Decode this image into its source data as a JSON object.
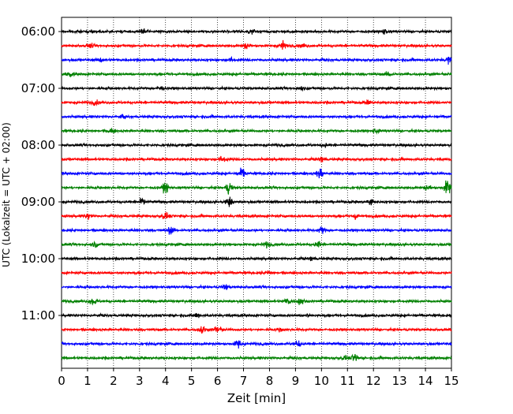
{
  "chart_data": {
    "type": "line",
    "title": "",
    "xlabel": "Zeit  [min]",
    "ylabel": "UTC (Lokalzeit = UTC + 02:00)",
    "xlim": [
      0,
      15
    ],
    "xticks": [
      0,
      1,
      2,
      3,
      4,
      5,
      6,
      7,
      8,
      9,
      10,
      11,
      12,
      13,
      14,
      15
    ],
    "grid": "vertical dotted lines at each minute",
    "time_ticks": [
      "06:00",
      "07:00",
      "08:00",
      "09:00",
      "10:00",
      "11:00"
    ],
    "trace_colors": [
      "#000000",
      "#ff0000",
      "#0000ff",
      "#008000"
    ],
    "traces": [
      {
        "start": "06:00",
        "color": "#000000",
        "events": [
          {
            "t": 3.15,
            "amp": 0.25
          },
          {
            "t": 7.3,
            "amp": 0.2
          },
          {
            "t": 12.4,
            "amp": 0.25
          }
        ]
      },
      {
        "start": "06:15",
        "color": "#ff0000",
        "events": [
          {
            "t": 1.1,
            "amp": 0.2
          },
          {
            "t": 7.1,
            "amp": 0.3
          },
          {
            "t": 8.5,
            "amp": 0.55
          },
          {
            "t": 9.3,
            "amp": 0.2
          }
        ]
      },
      {
        "start": "06:30",
        "color": "#0000ff",
        "events": [
          {
            "t": 1.5,
            "amp": 0.2
          },
          {
            "t": 6.5,
            "amp": 0.2
          },
          {
            "t": 14.9,
            "amp": 0.4
          }
        ]
      },
      {
        "start": "06:45",
        "color": "#008000",
        "events": [
          {
            "t": 0.3,
            "amp": 0.3
          },
          {
            "t": 12.6,
            "amp": 0.3
          }
        ]
      },
      {
        "start": "07:00",
        "color": "#000000",
        "events": [
          {
            "t": 3.8,
            "amp": 0.25
          },
          {
            "t": 9.2,
            "amp": 0.2
          }
        ]
      },
      {
        "start": "07:15",
        "color": "#ff0000",
        "events": [
          {
            "t": 1.3,
            "amp": 0.25
          },
          {
            "t": 11.8,
            "amp": 0.2
          }
        ]
      },
      {
        "start": "07:30",
        "color": "#0000ff",
        "events": [
          {
            "t": 2.4,
            "amp": 0.15
          }
        ]
      },
      {
        "start": "07:45",
        "color": "#008000",
        "events": [
          {
            "t": 1.9,
            "amp": 0.25
          },
          {
            "t": 12.1,
            "amp": 0.25
          }
        ]
      },
      {
        "start": "08:00",
        "color": "#000000",
        "events": [
          {
            "t": 10.1,
            "amp": 0.2
          }
        ]
      },
      {
        "start": "08:15",
        "color": "#ff0000",
        "events": [
          {
            "t": 6.2,
            "amp": 0.35
          },
          {
            "t": 10.0,
            "amp": 0.3
          }
        ]
      },
      {
        "start": "08:30",
        "color": "#0000ff",
        "events": [
          {
            "t": 6.95,
            "amp": 0.6
          },
          {
            "t": 9.95,
            "amp": 0.65
          }
        ]
      },
      {
        "start": "08:45",
        "color": "#008000",
        "events": [
          {
            "t": 4.0,
            "amp": 0.55
          },
          {
            "t": 6.45,
            "amp": 0.7
          },
          {
            "t": 14.1,
            "amp": 0.35
          },
          {
            "t": 14.85,
            "amp": 0.95
          }
        ]
      },
      {
        "start": "09:00",
        "color": "#000000",
        "events": [
          {
            "t": 3.1,
            "amp": 0.35
          },
          {
            "t": 6.45,
            "amp": 0.55
          },
          {
            "t": 11.9,
            "amp": 0.45
          }
        ]
      },
      {
        "start": "09:15",
        "color": "#ff0000",
        "events": [
          {
            "t": 1.0,
            "amp": 0.35
          },
          {
            "t": 4.0,
            "amp": 0.35
          },
          {
            "t": 11.3,
            "amp": 0.3
          }
        ]
      },
      {
        "start": "09:30",
        "color": "#0000ff",
        "events": [
          {
            "t": 4.2,
            "amp": 0.4
          },
          {
            "t": 10.0,
            "amp": 0.35
          }
        ]
      },
      {
        "start": "09:45",
        "color": "#008000",
        "events": [
          {
            "t": 1.3,
            "amp": 0.3
          },
          {
            "t": 7.9,
            "amp": 0.3
          },
          {
            "t": 9.9,
            "amp": 0.4
          }
        ]
      },
      {
        "start": "10:00",
        "color": "#000000",
        "events": [
          {
            "t": 9.6,
            "amp": 0.2
          }
        ]
      },
      {
        "start": "10:15",
        "color": "#ff0000",
        "events": [
          {
            "t": 8.0,
            "amp": 0.2
          }
        ]
      },
      {
        "start": "10:30",
        "color": "#0000ff",
        "events": [
          {
            "t": 6.3,
            "amp": 0.25
          }
        ]
      },
      {
        "start": "10:45",
        "color": "#008000",
        "events": [
          {
            "t": 1.2,
            "amp": 0.35
          },
          {
            "t": 8.7,
            "amp": 0.4
          },
          {
            "t": 9.2,
            "amp": 0.45
          }
        ]
      },
      {
        "start": "11:00",
        "color": "#000000",
        "events": [
          {
            "t": 5.2,
            "amp": 0.25
          },
          {
            "t": 9.5,
            "amp": 0.2
          }
        ]
      },
      {
        "start": "11:15",
        "color": "#ff0000",
        "events": [
          {
            "t": 5.4,
            "amp": 0.45
          },
          {
            "t": 6.0,
            "amp": 0.55
          },
          {
            "t": 8.4,
            "amp": 0.2
          }
        ]
      },
      {
        "start": "11:30",
        "color": "#0000ff",
        "events": [
          {
            "t": 6.8,
            "amp": 0.5
          },
          {
            "t": 9.1,
            "amp": 0.3
          }
        ]
      },
      {
        "start": "11:45",
        "color": "#008000",
        "events": [
          {
            "t": 10.9,
            "amp": 0.2
          },
          {
            "t": 11.3,
            "amp": 0.5
          }
        ]
      }
    ]
  }
}
